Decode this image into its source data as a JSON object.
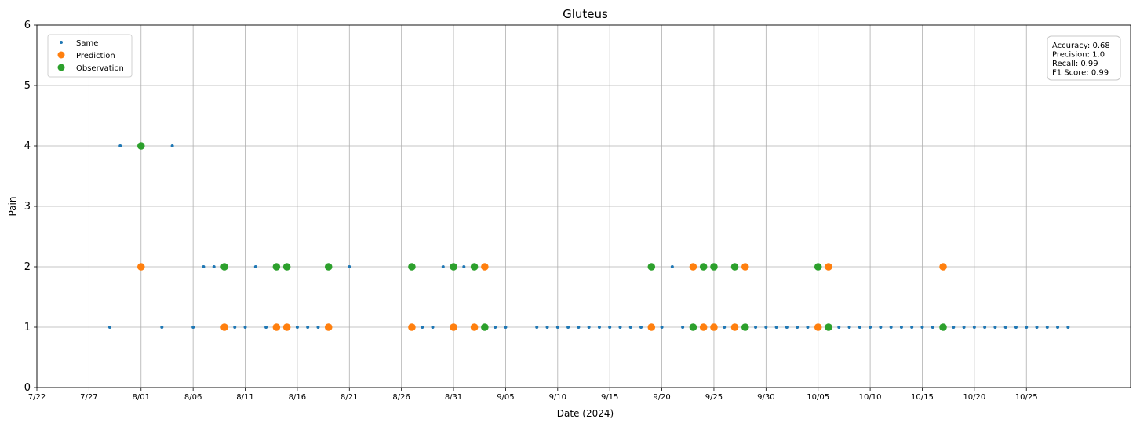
{
  "chart_data": {
    "type": "scatter",
    "title": "Gluteus",
    "xlabel": "Date (2024)",
    "ylabel": "Pain",
    "ylim": [
      0,
      6
    ],
    "yticks": [
      0,
      1,
      2,
      3,
      4,
      5,
      6
    ],
    "xlim": [
      "2024-07-22",
      "2024-11-04"
    ],
    "xticks": [
      {
        "date": "2024-07-22",
        "label": "7/22"
      },
      {
        "date": "2024-07-27",
        "label": "7/27"
      },
      {
        "date": "2024-08-01",
        "label": "8/01"
      },
      {
        "date": "2024-08-06",
        "label": "8/06"
      },
      {
        "date": "2024-08-11",
        "label": "8/11"
      },
      {
        "date": "2024-08-16",
        "label": "8/16"
      },
      {
        "date": "2024-08-21",
        "label": "8/21"
      },
      {
        "date": "2024-08-26",
        "label": "8/26"
      },
      {
        "date": "2024-08-31",
        "label": "8/31"
      },
      {
        "date": "2024-09-05",
        "label": "9/05"
      },
      {
        "date": "2024-09-10",
        "label": "9/10"
      },
      {
        "date": "2024-09-15",
        "label": "9/15"
      },
      {
        "date": "2024-09-20",
        "label": "9/20"
      },
      {
        "date": "2024-09-25",
        "label": "9/25"
      },
      {
        "date": "2024-09-30",
        "label": "9/30"
      },
      {
        "date": "2024-10-05",
        "label": "10/05"
      },
      {
        "date": "2024-10-10",
        "label": "10/10"
      },
      {
        "date": "2024-10-15",
        "label": "10/15"
      },
      {
        "date": "2024-10-20",
        "label": "10/20"
      },
      {
        "date": "2024-10-25",
        "label": "10/25"
      }
    ],
    "grid": true,
    "legend_position": "top-left",
    "series": [
      {
        "name": "Same",
        "color": "#1f77b4",
        "marker": "small",
        "points": [
          {
            "x": "2024-07-29",
            "y": 1
          },
          {
            "x": "2024-07-30",
            "y": 4
          },
          {
            "x": "2024-08-03",
            "y": 1
          },
          {
            "x": "2024-08-04",
            "y": 4
          },
          {
            "x": "2024-08-06",
            "y": 1
          },
          {
            "x": "2024-08-07",
            "y": 2
          },
          {
            "x": "2024-08-08",
            "y": 2
          },
          {
            "x": "2024-08-10",
            "y": 1
          },
          {
            "x": "2024-08-11",
            "y": 1
          },
          {
            "x": "2024-08-12",
            "y": 2
          },
          {
            "x": "2024-08-13",
            "y": 1
          },
          {
            "x": "2024-08-16",
            "y": 1
          },
          {
            "x": "2024-08-17",
            "y": 1
          },
          {
            "x": "2024-08-18",
            "y": 1
          },
          {
            "x": "2024-08-21",
            "y": 2
          },
          {
            "x": "2024-08-28",
            "y": 1
          },
          {
            "x": "2024-08-29",
            "y": 1
          },
          {
            "x": "2024-08-30",
            "y": 2
          },
          {
            "x": "2024-09-01",
            "y": 2
          },
          {
            "x": "2024-09-04",
            "y": 1
          },
          {
            "x": "2024-09-05",
            "y": 1
          },
          {
            "x": "2024-09-08",
            "y": 1
          },
          {
            "x": "2024-09-09",
            "y": 1
          },
          {
            "x": "2024-09-10",
            "y": 1
          },
          {
            "x": "2024-09-11",
            "y": 1
          },
          {
            "x": "2024-09-12",
            "y": 1
          },
          {
            "x": "2024-09-13",
            "y": 1
          },
          {
            "x": "2024-09-14",
            "y": 1
          },
          {
            "x": "2024-09-15",
            "y": 1
          },
          {
            "x": "2024-09-16",
            "y": 1
          },
          {
            "x": "2024-09-17",
            "y": 1
          },
          {
            "x": "2024-09-18",
            "y": 1
          },
          {
            "x": "2024-09-20",
            "y": 1
          },
          {
            "x": "2024-09-21",
            "y": 2
          },
          {
            "x": "2024-09-22",
            "y": 1
          },
          {
            "x": "2024-09-26",
            "y": 1
          },
          {
            "x": "2024-09-29",
            "y": 1
          },
          {
            "x": "2024-09-30",
            "y": 1
          },
          {
            "x": "2024-10-01",
            "y": 1
          },
          {
            "x": "2024-10-02",
            "y": 1
          },
          {
            "x": "2024-10-03",
            "y": 1
          },
          {
            "x": "2024-10-04",
            "y": 1
          },
          {
            "x": "2024-10-07",
            "y": 1
          },
          {
            "x": "2024-10-08",
            "y": 1
          },
          {
            "x": "2024-10-09",
            "y": 1
          },
          {
            "x": "2024-10-10",
            "y": 1
          },
          {
            "x": "2024-10-11",
            "y": 1
          },
          {
            "x": "2024-10-12",
            "y": 1
          },
          {
            "x": "2024-10-13",
            "y": 1
          },
          {
            "x": "2024-10-14",
            "y": 1
          },
          {
            "x": "2024-10-15",
            "y": 1
          },
          {
            "x": "2024-10-16",
            "y": 1
          },
          {
            "x": "2024-10-18",
            "y": 1
          },
          {
            "x": "2024-10-19",
            "y": 1
          },
          {
            "x": "2024-10-20",
            "y": 1
          },
          {
            "x": "2024-10-21",
            "y": 1
          },
          {
            "x": "2024-10-22",
            "y": 1
          },
          {
            "x": "2024-10-23",
            "y": 1
          },
          {
            "x": "2024-10-24",
            "y": 1
          },
          {
            "x": "2024-10-25",
            "y": 1
          },
          {
            "x": "2024-10-26",
            "y": 1
          },
          {
            "x": "2024-10-27",
            "y": 1
          },
          {
            "x": "2024-10-28",
            "y": 1
          },
          {
            "x": "2024-10-29",
            "y": 1
          }
        ]
      },
      {
        "name": "Prediction",
        "color": "#ff7f0e",
        "marker": "large",
        "points": [
          {
            "x": "2024-08-01",
            "y": 2
          },
          {
            "x": "2024-08-09",
            "y": 1
          },
          {
            "x": "2024-08-14",
            "y": 1
          },
          {
            "x": "2024-08-15",
            "y": 1
          },
          {
            "x": "2024-08-19",
            "y": 1
          },
          {
            "x": "2024-08-27",
            "y": 1
          },
          {
            "x": "2024-08-31",
            "y": 1
          },
          {
            "x": "2024-09-02",
            "y": 1
          },
          {
            "x": "2024-09-03",
            "y": 2
          },
          {
            "x": "2024-09-19",
            "y": 1
          },
          {
            "x": "2024-09-23",
            "y": 2
          },
          {
            "x": "2024-09-24",
            "y": 1
          },
          {
            "x": "2024-09-25",
            "y": 1
          },
          {
            "x": "2024-09-27",
            "y": 1
          },
          {
            "x": "2024-09-28",
            "y": 2
          },
          {
            "x": "2024-10-05",
            "y": 1
          },
          {
            "x": "2024-10-06",
            "y": 2
          },
          {
            "x": "2024-10-17",
            "y": 2
          }
        ]
      },
      {
        "name": "Observation",
        "color": "#2ca02c",
        "marker": "large",
        "points": [
          {
            "x": "2024-08-01",
            "y": 4
          },
          {
            "x": "2024-08-09",
            "y": 2
          },
          {
            "x": "2024-08-14",
            "y": 2
          },
          {
            "x": "2024-08-15",
            "y": 2
          },
          {
            "x": "2024-08-19",
            "y": 2
          },
          {
            "x": "2024-08-27",
            "y": 2
          },
          {
            "x": "2024-08-31",
            "y": 2
          },
          {
            "x": "2024-09-02",
            "y": 2
          },
          {
            "x": "2024-09-03",
            "y": 1
          },
          {
            "x": "2024-09-19",
            "y": 2
          },
          {
            "x": "2024-09-23",
            "y": 1
          },
          {
            "x": "2024-09-24",
            "y": 2
          },
          {
            "x": "2024-09-25",
            "y": 2
          },
          {
            "x": "2024-09-27",
            "y": 2
          },
          {
            "x": "2024-09-28",
            "y": 1
          },
          {
            "x": "2024-10-05",
            "y": 2
          },
          {
            "x": "2024-10-06",
            "y": 1
          },
          {
            "x": "2024-10-17",
            "y": 1
          }
        ]
      }
    ],
    "metrics": [
      "Accuracy: 0.68",
      "Precision: 1.0",
      "Recall: 0.99",
      "F1 Score: 0.99"
    ]
  }
}
